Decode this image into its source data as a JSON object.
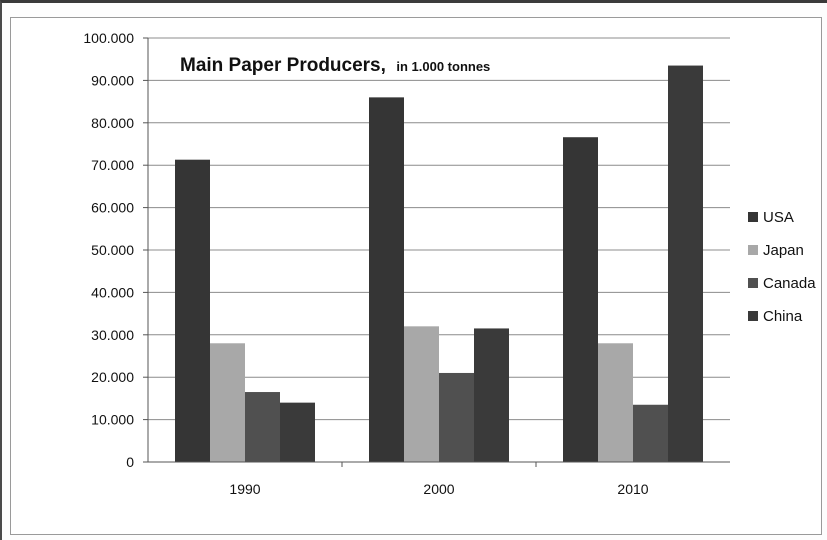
{
  "chart_data": {
    "type": "bar",
    "title": "Main Paper Producers,",
    "subtitle": "in 1.000 tonnes",
    "categories": [
      "1990",
      "2000",
      "2010"
    ],
    "series": [
      {
        "name": "USA",
        "values": [
          71300,
          86000,
          76600
        ],
        "color": "#353535"
      },
      {
        "name": "Japan",
        "values": [
          28000,
          32000,
          28000
        ],
        "color": "#a8a8a8"
      },
      {
        "name": "Canada",
        "values": [
          16500,
          21000,
          13500
        ],
        "color": "#505050"
      },
      {
        "name": "China",
        "values": [
          14000,
          31500,
          93500
        ],
        "color": "#3a3a3a"
      }
    ],
    "ylim": [
      0,
      100000
    ],
    "yticks": [
      0,
      10000,
      20000,
      30000,
      40000,
      50000,
      60000,
      70000,
      80000,
      90000,
      100000
    ],
    "ytick_labels": [
      "0",
      "10.000",
      "20.000",
      "30.000",
      "40.000",
      "50.000",
      "60.000",
      "70.000",
      "80.000",
      "90.000",
      "100.000"
    ],
    "xlabel": "",
    "ylabel": "",
    "grid": true,
    "legend_position": "right"
  }
}
